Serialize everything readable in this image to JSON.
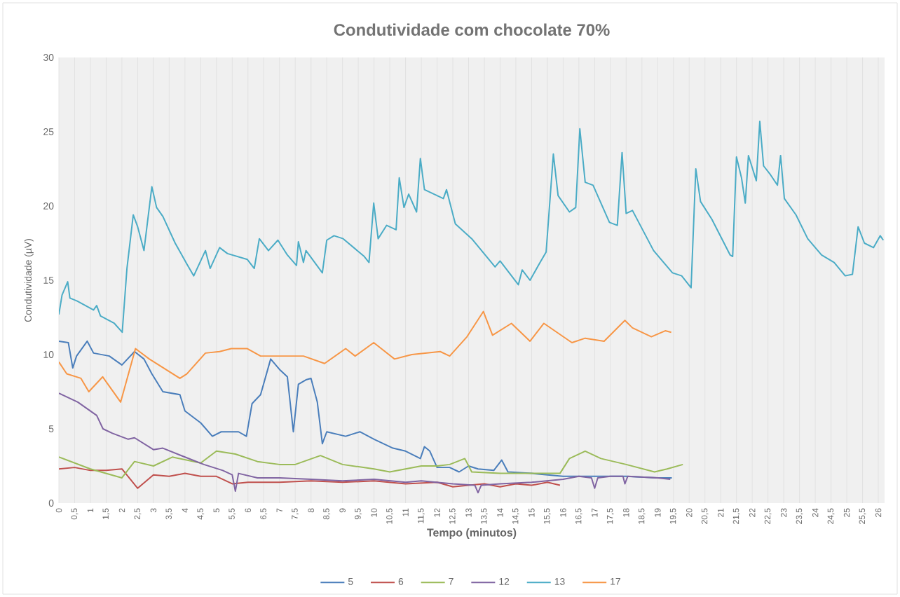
{
  "chart_data": {
    "type": "line",
    "title": "Condutividade com chocolate 70%",
    "xlabel": "Tempo (minutos)",
    "ylabel": "Condutividade (µV)",
    "xlim": [
      0,
      26.2
    ],
    "ylim": [
      0,
      30
    ],
    "yticks": [
      0,
      5,
      10,
      15,
      20,
      25,
      30
    ],
    "xticks": [
      0,
      {
        "value": 0.5,
        "label": "0,5"
      },
      1,
      {
        "value": 1.5,
        "label": "1,5"
      },
      2,
      {
        "value": 2.5,
        "label": "2,5"
      },
      3,
      {
        "value": 3.5,
        "label": "3,5"
      },
      4,
      {
        "value": 4.5,
        "label": "4,5"
      },
      5,
      {
        "value": 5.5,
        "label": "5,5"
      },
      6,
      {
        "value": 6.5,
        "label": "6,5"
      },
      7,
      {
        "value": 7.5,
        "label": "7,5"
      },
      8,
      {
        "value": 8.5,
        "label": "8,5"
      },
      9,
      {
        "value": 9.5,
        "label": "9,5"
      },
      10,
      {
        "value": 10.5,
        "label": "10,5"
      },
      11,
      {
        "value": 11.5,
        "label": "11,5"
      },
      12,
      {
        "value": 12.5,
        "label": "12,5"
      },
      13,
      {
        "value": 13.5,
        "label": "13,5"
      },
      14,
      {
        "value": 14.5,
        "label": "14,5"
      },
      15,
      {
        "value": 15.5,
        "label": "15,5"
      },
      16,
      {
        "value": 16.5,
        "label": "16,5"
      },
      17,
      {
        "value": 17.5,
        "label": "17,5"
      },
      18,
      {
        "value": 18.5,
        "label": "18,5"
      },
      19,
      {
        "value": 19.5,
        "label": "19,5"
      },
      20,
      {
        "value": 20.5,
        "label": "20,5"
      },
      21,
      {
        "value": 21.5,
        "label": "21,5"
      },
      22,
      {
        "value": 22.5,
        "label": "22,5"
      },
      23,
      {
        "value": 23.5,
        "label": "23,5"
      },
      24,
      {
        "value": 24.5,
        "label": "24,5"
      },
      25,
      {
        "value": 25.5,
        "label": "25,5"
      },
      26
    ],
    "grid": "x",
    "legend": "bottom",
    "marker": "none",
    "line_style": "solid",
    "series": [
      {
        "name": "5",
        "color": "#4a7ebb",
        "x": [
          0,
          0.3,
          0.44,
          0.56,
          0.9,
          1.1,
          1.6,
          2.0,
          2.4,
          2.7,
          2.95,
          3.3,
          3.84,
          4.0,
          4.5,
          4.87,
          5.15,
          5.7,
          5.95,
          6.13,
          6.4,
          6.72,
          7.0,
          7.25,
          7.44,
          7.6,
          7.84,
          8.0,
          8.2,
          8.36,
          8.5,
          9.1,
          9.55,
          10.0,
          10.6,
          11.0,
          11.47,
          11.6,
          11.77,
          12.0,
          12.4,
          12.7,
          13.0,
          13.3,
          13.8,
          14.05,
          14.25,
          15.0,
          16.0,
          17.0,
          18.0,
          19.0,
          19.45
        ],
        "values": [
          10.9,
          10.8,
          9.1,
          9.9,
          10.9,
          10.1,
          9.9,
          9.3,
          10.2,
          9.7,
          8.7,
          7.5,
          7.3,
          6.2,
          5.4,
          4.5,
          4.8,
          4.8,
          4.5,
          6.7,
          7.3,
          9.7,
          9.0,
          8.5,
          4.8,
          8.0,
          8.3,
          8.4,
          6.8,
          4.0,
          4.8,
          4.5,
          4.8,
          4.3,
          3.7,
          3.5,
          3.0,
          3.8,
          3.5,
          2.4,
          2.4,
          2.1,
          2.5,
          2.3,
          2.2,
          2.9,
          2.1,
          2.0,
          1.8,
          1.8,
          1.8,
          1.7,
          1.7
        ]
      },
      {
        "name": "6",
        "color": "#c0504d",
        "x": [
          0,
          0.5,
          1.0,
          1.5,
          2.0,
          2.5,
          3.0,
          3.5,
          4.0,
          4.5,
          5.0,
          5.5,
          6.0,
          7.0,
          8.0,
          9.0,
          10.0,
          11.0,
          12.0,
          12.5,
          13.0,
          13.5,
          14.0,
          14.5,
          15.0,
          15.5,
          15.9
        ],
        "values": [
          2.3,
          2.4,
          2.2,
          2.2,
          2.3,
          1.0,
          1.9,
          1.8,
          2.0,
          1.8,
          1.8,
          1.3,
          1.4,
          1.4,
          1.5,
          1.4,
          1.5,
          1.3,
          1.4,
          1.1,
          1.2,
          1.3,
          1.1,
          1.3,
          1.2,
          1.4,
          1.2
        ]
      },
      {
        "name": "7",
        "color": "#9bbb59",
        "x": [
          0,
          1.0,
          2.0,
          2.4,
          3.0,
          3.6,
          4.5,
          5.0,
          5.6,
          6.3,
          7.0,
          7.5,
          8.3,
          9.0,
          10.0,
          10.5,
          11.5,
          12.0,
          12.4,
          12.88,
          13.1,
          14.0,
          15.0,
          15.9,
          16.2,
          16.7,
          17.2,
          18.0,
          18.9,
          19.3,
          19.8
        ],
        "values": [
          3.1,
          2.3,
          1.7,
          2.8,
          2.5,
          3.1,
          2.7,
          3.5,
          3.3,
          2.8,
          2.6,
          2.6,
          3.2,
          2.6,
          2.3,
          2.1,
          2.5,
          2.5,
          2.6,
          3.0,
          2.1,
          2.0,
          2.0,
          2.0,
          3.0,
          3.5,
          3.0,
          2.6,
          2.1,
          2.3,
          2.6
        ]
      },
      {
        "name": "12",
        "color": "#8064a2",
        "x": [
          0,
          0.6,
          1.2,
          1.4,
          1.7,
          2.2,
          2.4,
          3.0,
          3.3,
          4.0,
          4.6,
          5.2,
          5.5,
          5.6,
          5.7,
          6.3,
          7.0,
          8.0,
          9.0,
          10.0,
          11.0,
          11.5,
          12.5,
          13.2,
          13.3,
          13.4,
          14.0,
          15.0,
          16.0,
          16.5,
          16.9,
          17.0,
          17.1,
          17.5,
          17.9,
          17.96,
          18.05,
          19.0,
          19.4
        ],
        "values": [
          7.4,
          6.8,
          5.9,
          5.0,
          4.7,
          4.3,
          4.4,
          3.6,
          3.7,
          3.1,
          2.6,
          2.2,
          1.9,
          0.8,
          2.0,
          1.7,
          1.7,
          1.6,
          1.5,
          1.6,
          1.4,
          1.5,
          1.3,
          1.2,
          0.7,
          1.2,
          1.3,
          1.4,
          1.6,
          1.8,
          1.7,
          1.0,
          1.7,
          1.8,
          1.8,
          1.3,
          1.8,
          1.7,
          1.6
        ]
      },
      {
        "name": "13",
        "color": "#4bacc6",
        "x": [
          0,
          0.1,
          0.28,
          0.35,
          0.58,
          1.1,
          1.2,
          1.32,
          1.76,
          2.01,
          2.16,
          2.36,
          2.5,
          2.7,
          2.95,
          3.1,
          3.3,
          3.69,
          4.06,
          4.28,
          4.65,
          4.8,
          5.1,
          5.35,
          5.98,
          6.2,
          6.36,
          6.65,
          6.95,
          7.25,
          7.54,
          7.6,
          7.76,
          7.84,
          8.36,
          8.5,
          8.73,
          9.02,
          9.69,
          9.84,
          9.99,
          10.13,
          10.4,
          10.7,
          10.8,
          10.95,
          11.1,
          11.35,
          11.47,
          11.6,
          12.2,
          12.3,
          12.58,
          13.1,
          13.84,
          14.0,
          14.58,
          14.7,
          14.95,
          15.24,
          15.46,
          15.69,
          15.84,
          16.2,
          16.4,
          16.53,
          16.7,
          16.95,
          17.47,
          17.72,
          17.87,
          18.0,
          18.2,
          18.87,
          19.47,
          19.76,
          20.06,
          20.21,
          20.36,
          20.72,
          21.3,
          21.38,
          21.5,
          21.66,
          21.78,
          21.88,
          22.13,
          22.24,
          22.36,
          22.58,
          22.8,
          22.9,
          23.02,
          23.39,
          23.76,
          24.2,
          24.6,
          24.95,
          25.18,
          25.36,
          25.56,
          25.85,
          26.06,
          26.16
        ],
        "values": [
          12.7,
          14.0,
          14.9,
          13.8,
          13.6,
          13.0,
          13.3,
          12.6,
          12.1,
          11.5,
          15.8,
          19.4,
          18.6,
          17.0,
          21.3,
          19.9,
          19.3,
          17.5,
          16.1,
          15.3,
          17.0,
          15.8,
          17.2,
          16.8,
          16.4,
          15.8,
          17.8,
          17.0,
          17.7,
          16.7,
          16.0,
          17.6,
          16.2,
          17.0,
          15.5,
          17.7,
          18.0,
          17.8,
          16.6,
          16.2,
          20.2,
          17.8,
          18.7,
          18.4,
          21.9,
          19.9,
          20.8,
          19.6,
          23.2,
          21.1,
          20.5,
          21.1,
          18.8,
          17.8,
          15.9,
          16.3,
          14.7,
          15.7,
          15.0,
          16.1,
          16.9,
          23.5,
          20.7,
          19.6,
          19.9,
          25.2,
          21.6,
          21.4,
          18.9,
          18.7,
          23.6,
          19.5,
          19.7,
          17.0,
          15.5,
          15.3,
          14.5,
          22.5,
          20.3,
          19.1,
          16.7,
          16.6,
          23.3,
          21.9,
          20.2,
          23.4,
          21.7,
          25.7,
          22.7,
          22.1,
          21.4,
          23.4,
          20.5,
          19.4,
          17.8,
          16.7,
          16.2,
          15.3,
          15.4,
          18.6,
          17.5,
          17.2,
          18.0,
          17.7
        ]
      },
      {
        "name": "17",
        "color": "#f79646",
        "x": [
          0,
          0.25,
          0.7,
          0.95,
          1.39,
          1.96,
          2.43,
          2.87,
          3.84,
          4.06,
          4.65,
          5.1,
          5.47,
          5.98,
          6.4,
          7.76,
          8.43,
          9.1,
          9.4,
          9.99,
          10.65,
          11.2,
          12.1,
          12.4,
          12.95,
          13.47,
          13.76,
          14.36,
          14.95,
          15.39,
          16.28,
          16.7,
          17.3,
          17.96,
          18.2,
          18.8,
          19.24,
          19.43
        ],
        "values": [
          9.5,
          8.7,
          8.4,
          7.5,
          8.5,
          6.8,
          10.4,
          9.7,
          8.4,
          8.7,
          10.1,
          10.2,
          10.4,
          10.4,
          9.9,
          9.9,
          9.4,
          10.4,
          9.9,
          10.8,
          9.7,
          10.0,
          10.2,
          9.9,
          11.2,
          12.9,
          11.3,
          12.1,
          10.9,
          12.1,
          10.8,
          11.1,
          10.9,
          12.3,
          11.8,
          11.2,
          11.6,
          11.5
        ]
      }
    ]
  }
}
